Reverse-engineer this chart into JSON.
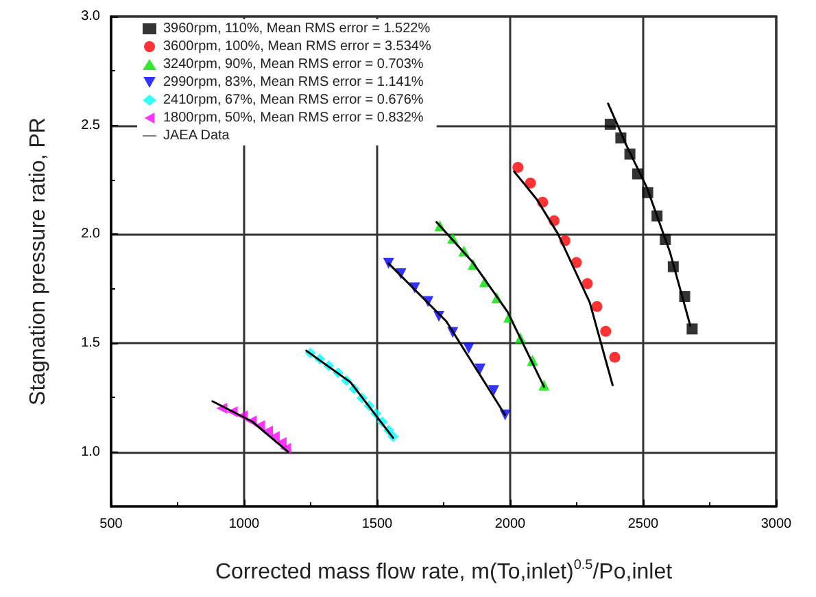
{
  "chart_data": {
    "type": "scatter",
    "xlabel": "Corrected mass flow rate, m(To,inlet)$^{0.5}$/Po,inlet",
    "ylabel": "Stagnation pressure ratio, PR",
    "xlim": [
      500,
      3000
    ],
    "xticks": [
      500,
      1000,
      1500,
      2000,
      2500,
      3000
    ],
    "ylim": [
      0.75,
      3.0
    ],
    "yticks": [
      {
        "value": 1.0,
        "label": "1.0"
      },
      {
        "value": 1.5,
        "label": "1.5"
      },
      {
        "value": 2.0,
        "label": "2.0"
      },
      {
        "value": 2.5,
        "label": "2.5"
      },
      {
        "value": 3.0,
        "label": "3.0"
      }
    ],
    "grid": true,
    "legend": "top left",
    "series": [
      {
        "name": "3960rpm, 110%, Mean RMS error = 1.522%",
        "color": "#000000",
        "marker": "square",
        "x": [
          2376,
          2416,
          2450,
          2479,
          2517,
          2552,
          2583,
          2613,
          2656,
          2684
        ],
        "values": [
          2.505,
          2.442,
          2.368,
          2.277,
          2.191,
          2.084,
          1.976,
          1.851,
          1.714,
          1.565
        ]
      },
      {
        "name": "3600rpm, 100%, Mean RMS error = 3.534%",
        "color": "#ff0000",
        "marker": "circle",
        "x": [
          2029,
          2076,
          2122,
          2165,
          2206,
          2249,
          2290,
          2326,
          2359,
          2393
        ],
        "values": [
          2.307,
          2.235,
          2.147,
          2.062,
          1.97,
          1.87,
          1.773,
          1.668,
          1.554,
          1.435
        ]
      },
      {
        "name": "3240rpm, 90%, Mean RMS error = 0.703%",
        "color": "#00e000",
        "marker": "triangle",
        "x": [
          1736,
          1784,
          1826,
          1861,
          1904,
          1950,
          1995,
          2038,
          2084,
          2127
        ],
        "values": [
          2.039,
          1.982,
          1.923,
          1.862,
          1.782,
          1.708,
          1.619,
          1.524,
          1.421,
          1.307
        ]
      },
      {
        "name": "2990rpm, 83%, Mean RMS error = 1.141%",
        "color": "#0000ff",
        "marker": "triangle-down",
        "x": [
          1543,
          1589,
          1641,
          1691,
          1732,
          1784,
          1844,
          1887,
          1938,
          1981
        ],
        "values": [
          1.866,
          1.818,
          1.754,
          1.691,
          1.623,
          1.549,
          1.476,
          1.381,
          1.282,
          1.17
        ]
      },
      {
        "name": "2410rpm, 67%, Mean RMS error = 0.676%",
        "color": "#00ffff",
        "marker": "diamond",
        "x": [
          1249,
          1284,
          1318,
          1353,
          1384,
          1413,
          1443,
          1470,
          1495,
          1519,
          1543,
          1560
        ],
        "values": [
          1.454,
          1.427,
          1.396,
          1.364,
          1.328,
          1.29,
          1.248,
          1.212,
          1.176,
          1.138,
          1.1,
          1.071
        ]
      },
      {
        "name": "1800rpm, 50%, Mean RMS error = 0.832%",
        "color": "#ff00ff",
        "marker": "triangle-left",
        "x": [
          916,
          955,
          993,
          1027,
          1058,
          1088,
          1113,
          1139,
          1156
        ],
        "values": [
          1.201,
          1.185,
          1.166,
          1.142,
          1.121,
          1.096,
          1.071,
          1.043,
          1.016
        ]
      },
      {
        "name": "JAEA Data",
        "type": "line",
        "color": "#000000",
        "marker": "none",
        "line_style": "solid",
        "x": [
          2368,
          2440,
          2514,
          2600,
          2677,
          null,
          2015,
          2100,
          2179,
          2299,
          2385,
          null,
          1723,
          1860,
          1990,
          2127,
          null,
          1543,
          1760,
          1981,
          null,
          1234,
          1400,
          1560,
          null,
          881,
          1030,
          1165
        ],
        "values": [
          2.6,
          2.4,
          2.214,
          1.92,
          1.58,
          null,
          2.288,
          2.16,
          2.003,
          1.687,
          1.307,
          null,
          2.056,
          1.87,
          1.644,
          1.3,
          null,
          1.866,
          1.6,
          1.17,
          null,
          1.465,
          1.32,
          1.065,
          null,
          1.233,
          1.14,
          1.001
        ]
      }
    ]
  }
}
